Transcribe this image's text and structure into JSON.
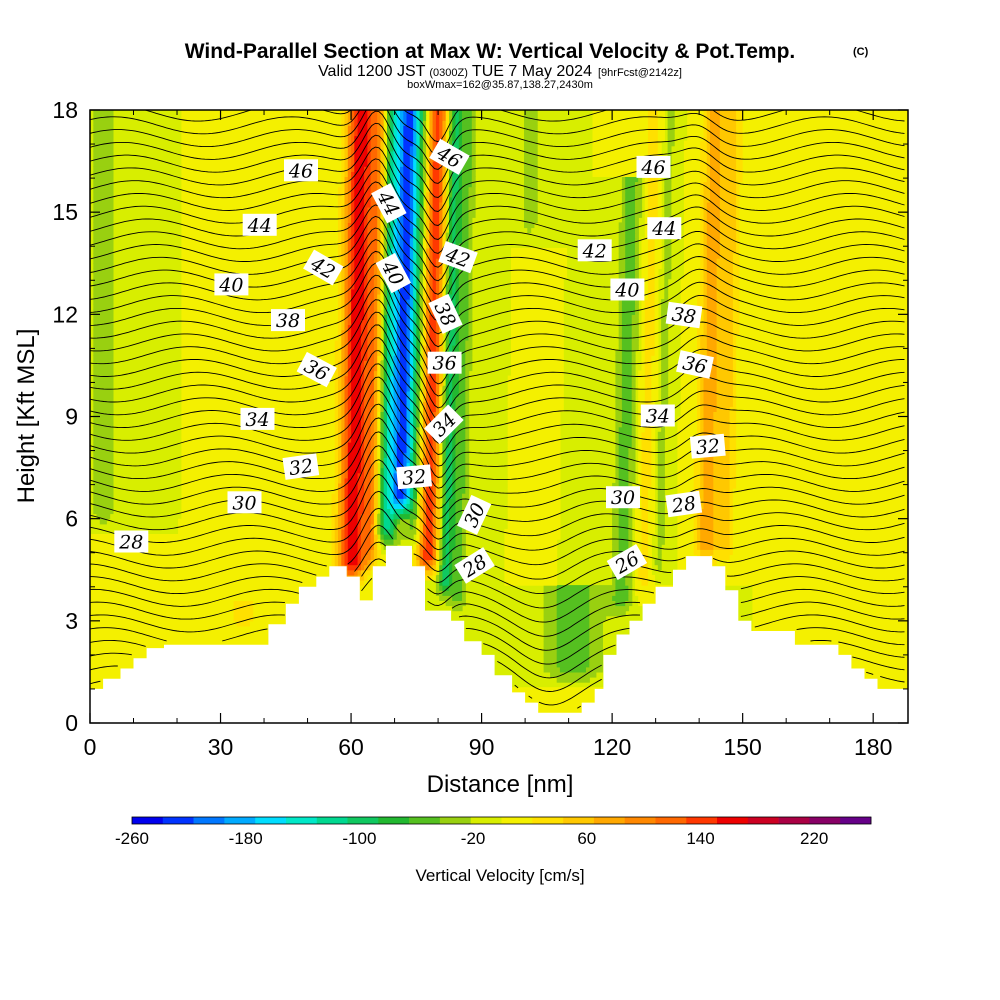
{
  "chart_data": {
    "type": "heatmap",
    "title": "Wind-Parallel Section at Max W: Vertical Velocity & Pot.Temp.",
    "title_tag": "(C)",
    "subtitle": {
      "prefix": "Valid 1200 JST",
      "utc": "(0300Z)",
      "date": "TUE 7 May 2024",
      "fcst": "[9hrFcst@2142z]"
    },
    "box_info": "boxWmax=162@35.87,138.27,2430m",
    "xlabel": "Distance [nm]",
    "ylabel": "Height [Kft MSL]",
    "xlim": [
      0,
      188
    ],
    "ylim": [
      0,
      18
    ],
    "xticks": [
      "0",
      "30",
      "60",
      "90",
      "120",
      "150",
      "180"
    ],
    "xtick_values": [
      0,
      30,
      60,
      90,
      120,
      150,
      180
    ],
    "yticks": [
      "0",
      "3",
      "6",
      "9",
      "12",
      "15",
      "18"
    ],
    "ytick_values": [
      0,
      3,
      6,
      9,
      12,
      15,
      18
    ],
    "background_color": "#d8ee00",
    "colorbar": {
      "label": "Vertical Velocity [cm/s]",
      "tick_labels": [
        "-260",
        "-180",
        "-100",
        "-20",
        "60",
        "140",
        "220"
      ],
      "tick_values": [
        -260,
        -180,
        -100,
        -20,
        60,
        140,
        220
      ],
      "range": [
        -260,
        260
      ],
      "colors": [
        "#0000ee",
        "#0033ff",
        "#0077ff",
        "#00aaff",
        "#00ddff",
        "#00e8c8",
        "#00d890",
        "#10c860",
        "#22b830",
        "#55c020",
        "#99d010",
        "#d8ee00",
        "#f4f000",
        "#ffe000",
        "#ffc800",
        "#ffa800",
        "#ff8800",
        "#ff6800",
        "#ff3800",
        "#ee0000",
        "#cc0022",
        "#aa0044",
        "#880066",
        "#660088"
      ]
    },
    "terrain": [
      [
        0,
        1.0
      ],
      [
        3,
        1.0
      ],
      [
        3,
        1.3
      ],
      [
        7,
        1.3
      ],
      [
        7,
        1.6
      ],
      [
        10,
        1.6
      ],
      [
        10,
        1.9
      ],
      [
        13,
        1.9
      ],
      [
        13,
        2.2
      ],
      [
        17,
        2.2
      ],
      [
        17,
        2.3
      ],
      [
        41,
        2.3
      ],
      [
        41,
        2.9
      ],
      [
        45,
        2.9
      ],
      [
        45,
        3.5
      ],
      [
        48,
        3.5
      ],
      [
        48,
        4.0
      ],
      [
        52,
        4.0
      ],
      [
        52,
        4.3
      ],
      [
        55,
        4.3
      ],
      [
        55,
        4.6
      ],
      [
        59,
        4.6
      ],
      [
        59,
        4.3
      ],
      [
        62,
        4.3
      ],
      [
        62,
        3.6
      ],
      [
        65,
        3.6
      ],
      [
        65,
        4.6
      ],
      [
        68,
        4.6
      ],
      [
        68,
        5.2
      ],
      [
        74,
        5.2
      ],
      [
        74,
        4.6
      ],
      [
        77,
        4.6
      ],
      [
        77,
        3.3
      ],
      [
        83,
        3.3
      ],
      [
        83,
        3.0
      ],
      [
        86,
        3.0
      ],
      [
        86,
        2.4
      ],
      [
        90,
        2.4
      ],
      [
        90,
        2.0
      ],
      [
        93,
        2.0
      ],
      [
        93,
        1.4
      ],
      [
        97,
        1.4
      ],
      [
        97,
        0.9
      ],
      [
        100,
        0.9
      ],
      [
        100,
        0.6
      ],
      [
        103,
        0.6
      ],
      [
        103,
        0.3
      ],
      [
        113,
        0.3
      ],
      [
        113,
        0.6
      ],
      [
        116,
        0.6
      ],
      [
        116,
        1.0
      ],
      [
        118,
        1.0
      ],
      [
        118,
        2.0
      ],
      [
        121,
        2.0
      ],
      [
        121,
        2.6
      ],
      [
        124,
        2.6
      ],
      [
        124,
        3.0
      ],
      [
        127,
        3.0
      ],
      [
        127,
        3.5
      ],
      [
        130,
        3.5
      ],
      [
        130,
        4.0
      ],
      [
        134,
        4.0
      ],
      [
        134,
        4.5
      ],
      [
        137,
        4.5
      ],
      [
        137,
        4.9
      ],
      [
        143,
        4.9
      ],
      [
        143,
        4.6
      ],
      [
        146,
        4.6
      ],
      [
        146,
        3.9
      ],
      [
        149,
        3.9
      ],
      [
        149,
        3.0
      ],
      [
        152,
        3.0
      ],
      [
        152,
        2.7
      ],
      [
        162,
        2.7
      ],
      [
        162,
        2.3
      ],
      [
        172,
        2.3
      ],
      [
        172,
        2.0
      ],
      [
        175,
        2.0
      ],
      [
        175,
        1.6
      ],
      [
        178,
        1.6
      ],
      [
        178,
        1.3
      ],
      [
        181,
        1.3
      ],
      [
        181,
        1.0
      ],
      [
        188,
        1.0
      ]
    ],
    "w_features": [
      {
        "x": 60.0,
        "z0": 4.0,
        "z1": 18,
        "lean": 3.0,
        "w": 3.2,
        "v": 170
      },
      {
        "x": 64.5,
        "z0": 4.5,
        "z1": 18,
        "lean": 3.0,
        "w": 2.0,
        "v": 90
      },
      {
        "x": 68.0,
        "z0": 5.0,
        "z1": 18,
        "lean": 3.0,
        "w": 2.6,
        "v": -120
      },
      {
        "x": 71.5,
        "z0": 6.0,
        "z1": 18,
        "lean": 3.0,
        "w": 2.2,
        "v": -200
      },
      {
        "x": 74.5,
        "z0": 5.0,
        "z1": 18,
        "lean": 3.0,
        "w": 2.2,
        "v": -70
      },
      {
        "x": 77.5,
        "z0": 4.2,
        "z1": 18,
        "lean": 3.0,
        "w": 2.6,
        "v": 150
      },
      {
        "x": 81.5,
        "z0": 3.5,
        "z1": 18,
        "lean": 3.0,
        "w": 1.8,
        "v": -100
      },
      {
        "x": 84.5,
        "z0": 3.0,
        "z1": 18,
        "lean": 3.0,
        "w": 1.8,
        "v": -50
      },
      {
        "x": 122.0,
        "z0": 3.0,
        "z1": 16,
        "lean": 3.5,
        "w": 2.5,
        "v": -55
      },
      {
        "x": 127.0,
        "z0": 3.5,
        "z1": 18,
        "lean": 3.5,
        "w": 2.2,
        "v": 30
      },
      {
        "x": 130.5,
        "z0": 4.0,
        "z1": 18,
        "lean": 3.5,
        "w": 1.6,
        "v": -30
      },
      {
        "x": 141.5,
        "z0": 4.5,
        "z1": 18,
        "lean": 3.0,
        "w": 2.6,
        "v": 80
      },
      {
        "x": 146.0,
        "z0": 4.5,
        "z1": 18,
        "lean": 3.0,
        "w": 2.0,
        "v": 45
      },
      {
        "x": 111.0,
        "z0": 1.0,
        "z1": 4,
        "lean": 0,
        "w": 7.0,
        "v": -60
      },
      {
        "x": 35.0,
        "z0": 2.3,
        "z1": 3.6,
        "lean": 0,
        "w": 6.0,
        "v": 25
      },
      {
        "x": 3.0,
        "z0": 5.5,
        "z1": 18,
        "lean": 0,
        "w": 3.0,
        "v": -35
      },
      {
        "x": 101.0,
        "z0": 14.0,
        "z1": 18,
        "lean": 0,
        "w": 2.5,
        "v": -30
      },
      {
        "x": 178.0,
        "z0": 8.0,
        "z1": 18,
        "lean": 0,
        "w": 3.0,
        "v": 20
      }
    ],
    "contour_levels": [
      26,
      28,
      30,
      32,
      34,
      36,
      38,
      40,
      42,
      44,
      46
    ],
    "contour_labels": [
      {
        "text": "28",
        "x": 9.5,
        "y": 5.3,
        "angle": 0
      },
      {
        "text": "30",
        "x": 35.5,
        "y": 6.45,
        "angle": 0
      },
      {
        "text": "32",
        "x": 48.5,
        "y": 7.5,
        "angle": -8
      },
      {
        "text": "34",
        "x": 38.5,
        "y": 8.9,
        "angle": 0
      },
      {
        "text": "36",
        "x": 52.0,
        "y": 10.35,
        "angle": 28
      },
      {
        "text": "38",
        "x": 45.5,
        "y": 11.8,
        "angle": 0
      },
      {
        "text": "40",
        "x": 32.5,
        "y": 12.85,
        "angle": 0
      },
      {
        "text": "42",
        "x": 53.5,
        "y": 13.35,
        "angle": 30
      },
      {
        "text": "44",
        "x": 39.0,
        "y": 14.6,
        "angle": 0
      },
      {
        "text": "46",
        "x": 48.5,
        "y": 16.2,
        "angle": 0
      },
      {
        "text": "44",
        "x": 68.5,
        "y": 15.25,
        "angle": 62
      },
      {
        "text": "40",
        "x": 69.5,
        "y": 13.2,
        "angle": 62
      },
      {
        "text": "46",
        "x": 82.5,
        "y": 16.6,
        "angle": 30
      },
      {
        "text": "42",
        "x": 84.5,
        "y": 13.65,
        "angle": 20
      },
      {
        "text": "38",
        "x": 81.5,
        "y": 12.0,
        "angle": 65
      },
      {
        "text": "36",
        "x": 81.5,
        "y": 10.55,
        "angle": 0
      },
      {
        "text": "34",
        "x": 81.5,
        "y": 8.75,
        "angle": -45
      },
      {
        "text": "32",
        "x": 74.5,
        "y": 7.2,
        "angle": -5
      },
      {
        "text": "30",
        "x": 88.5,
        "y": 6.1,
        "angle": -65
      },
      {
        "text": "28",
        "x": 88.5,
        "y": 4.6,
        "angle": -32
      },
      {
        "text": "26",
        "x": 123.5,
        "y": 4.7,
        "angle": -30
      },
      {
        "text": "28",
        "x": 136.5,
        "y": 6.4,
        "angle": -8
      },
      {
        "text": "30",
        "x": 122.5,
        "y": 6.6,
        "angle": 0
      },
      {
        "text": "32",
        "x": 142.0,
        "y": 8.1,
        "angle": -5
      },
      {
        "text": "34",
        "x": 130.5,
        "y": 9.0,
        "angle": 0
      },
      {
        "text": "36",
        "x": 139.0,
        "y": 10.5,
        "angle": 12
      },
      {
        "text": "38",
        "x": 136.5,
        "y": 11.95,
        "angle": 8
      },
      {
        "text": "40",
        "x": 123.5,
        "y": 12.7,
        "angle": 0
      },
      {
        "text": "42",
        "x": 116.0,
        "y": 13.85,
        "angle": 0
      },
      {
        "text": "44",
        "x": 132.0,
        "y": 14.5,
        "angle": 0
      },
      {
        "text": "46",
        "x": 129.5,
        "y": 16.3,
        "angle": 0
      }
    ]
  }
}
